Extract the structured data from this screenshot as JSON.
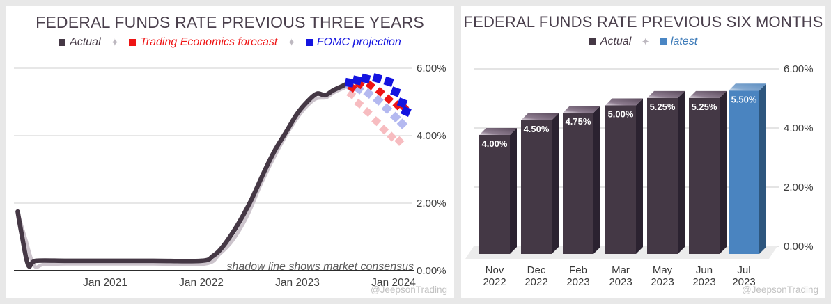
{
  "page": {
    "background": "#e8e8e8",
    "card_background": "#ffffff"
  },
  "chart_data": [
    {
      "id": "fed-funds-three-years",
      "type": "line",
      "title": "FEDERAL FUNDS RATE PREVIOUS THREE YEARS",
      "legend": [
        {
          "label": "Actual",
          "swatch": "#453845",
          "text_color": "#453845"
        },
        {
          "label": "Trading Economics forecast",
          "swatch": "#ee1414",
          "text_color": "#ee1414"
        },
        {
          "label": "FOMC projection",
          "swatch": "#1414e0",
          "text_color": "#1414e0"
        }
      ],
      "legend_separator": "✦",
      "annotation": "shadow line shows market consensus",
      "watermark": "@JeepsonTrading",
      "ylabel": "",
      "xlabel": "",
      "ylim": [
        0,
        6.4
      ],
      "grid": true,
      "y_ticks": [
        {
          "value": 6,
          "label": "6.00%"
        },
        {
          "value": 4,
          "label": "4.00%"
        },
        {
          "value": 2,
          "label": "2.00%"
        },
        {
          "value": 0,
          "label": "0.00%"
        }
      ],
      "x_ticks": [
        {
          "value": 2021.0,
          "label": "Jan 2021"
        },
        {
          "value": 2022.0,
          "label": "Jan 2022"
        },
        {
          "value": 2023.0,
          "label": "Jan 2023"
        },
        {
          "value": 2024.0,
          "label": "Jan 2024"
        }
      ],
      "series": [
        {
          "name": "market consensus shadow",
          "style": "line",
          "color": "#ccc4cc",
          "width": 5,
          "points": [
            [
              2020.09,
              1.73
            ],
            [
              2020.17,
              0.95
            ],
            [
              2020.26,
              0.15
            ],
            [
              2020.36,
              0.18
            ],
            [
              2020.6,
              0.2
            ],
            [
              2021.0,
              0.2
            ],
            [
              2021.5,
              0.2
            ],
            [
              2022.04,
              0.2
            ],
            [
              2022.19,
              0.49
            ],
            [
              2022.33,
              0.91
            ],
            [
              2022.48,
              1.63
            ],
            [
              2022.62,
              2.56
            ],
            [
              2022.75,
              3.32
            ],
            [
              2022.86,
              3.9
            ],
            [
              2022.97,
              4.41
            ],
            [
              2023.08,
              4.82
            ],
            [
              2023.19,
              5.09
            ],
            [
              2023.3,
              5.13
            ],
            [
              2023.38,
              5.28
            ],
            [
              2023.49,
              5.42
            ]
          ]
        },
        {
          "name": "Actual",
          "style": "line",
          "color": "#453845",
          "width": 6.5,
          "points": [
            [
              2020.09,
              1.75
            ],
            [
              2020.13,
              1.1
            ],
            [
              2020.2,
              0.16
            ],
            [
              2020.28,
              0.29
            ],
            [
              2020.6,
              0.29
            ],
            [
              2021.0,
              0.29
            ],
            [
              2021.5,
              0.29
            ],
            [
              2022.0,
              0.29
            ],
            [
              2022.12,
              0.43
            ],
            [
              2022.22,
              0.7
            ],
            [
              2022.37,
              1.32
            ],
            [
              2022.51,
              2.04
            ],
            [
              2022.66,
              2.97
            ],
            [
              2022.77,
              3.59
            ],
            [
              2022.88,
              4.1
            ],
            [
              2022.99,
              4.62
            ],
            [
              2023.09,
              4.97
            ],
            [
              2023.2,
              5.24
            ],
            [
              2023.29,
              5.2
            ],
            [
              2023.37,
              5.34
            ],
            [
              2023.46,
              5.46
            ],
            [
              2023.51,
              5.53
            ]
          ]
        },
        {
          "name": "Trading Economics forecast shadow",
          "style": "diamonds",
          "color": "#f7bcc0",
          "size": 10,
          "rotation": 45,
          "points": [
            [
              2023.56,
              5.22
            ],
            [
              2023.64,
              4.95
            ],
            [
              2023.73,
              4.7
            ],
            [
              2023.82,
              4.43
            ],
            [
              2023.9,
              4.18
            ],
            [
              2023.98,
              3.97
            ],
            [
              2024.06,
              3.84
            ]
          ]
        },
        {
          "name": "FOMC projection shadow",
          "style": "diamonds",
          "color": "#b4b9f0",
          "size": 11,
          "rotation": 45,
          "points": [
            [
              2023.55,
              5.45
            ],
            [
              2023.64,
              5.38
            ],
            [
              2023.74,
              5.25
            ],
            [
              2023.84,
              5.05
            ],
            [
              2023.93,
              4.8
            ],
            [
              2024.02,
              4.55
            ],
            [
              2024.09,
              4.35
            ]
          ]
        },
        {
          "name": "Trading Economics forecast",
          "style": "diamonds",
          "color": "#ee1414",
          "size": 10,
          "rotation": 45,
          "points": [
            [
              2023.57,
              5.42
            ],
            [
              2023.65,
              5.52
            ],
            [
              2023.76,
              5.49
            ],
            [
              2023.86,
              5.3
            ],
            [
              2023.95,
              5.08
            ],
            [
              2024.04,
              4.9
            ],
            [
              2024.11,
              4.84
            ]
          ]
        },
        {
          "name": "FOMC projection",
          "style": "diamonds",
          "color": "#1414e0",
          "size": 12,
          "rotation": 20,
          "points": [
            [
              2023.54,
              5.57
            ],
            [
              2023.62,
              5.64
            ],
            [
              2023.71,
              5.69
            ],
            [
              2023.83,
              5.7
            ],
            [
              2023.95,
              5.6
            ],
            [
              2024.02,
              5.3
            ],
            [
              2024.09,
              4.97
            ],
            [
              2024.13,
              4.72
            ]
          ]
        }
      ]
    },
    {
      "id": "fed-funds-six-months",
      "type": "bar",
      "title": "FEDERAL FUNDS RATE PREVIOUS SIX MONTHS",
      "legend": [
        {
          "label": "Actual",
          "swatch": "#453845",
          "text_color": "#453845"
        },
        {
          "label": "latest",
          "swatch": "#4a86c4",
          "text_color": "#3c7ab8"
        }
      ],
      "legend_separator": "✦",
      "watermark": "@JeepsonTrading",
      "ylim": [
        0,
        6.4
      ],
      "grid": true,
      "y_ticks": [
        {
          "value": 6,
          "label": "6.00%"
        },
        {
          "value": 4,
          "label": "4.00%"
        },
        {
          "value": 2,
          "label": "2.00%"
        },
        {
          "value": 0,
          "label": "0.00%"
        }
      ],
      "categories": [
        {
          "month": "Nov",
          "year": "2022"
        },
        {
          "month": "Dec",
          "year": "2022"
        },
        {
          "month": "Feb",
          "year": "2023"
        },
        {
          "month": "Mar",
          "year": "2023"
        },
        {
          "month": "May",
          "year": "2023"
        },
        {
          "month": "Jun",
          "year": "2023"
        },
        {
          "month": "Jul",
          "year": "2023"
        }
      ],
      "values": [
        4.0,
        4.5,
        4.75,
        5.0,
        5.25,
        5.25,
        5.5
      ],
      "bar_labels": [
        "4.00%",
        "4.50%",
        "4.75%",
        "5.00%",
        "5.25%",
        "5.25%",
        "5.50%"
      ],
      "variants": [
        "actual",
        "actual",
        "actual",
        "actual",
        "actual",
        "actual",
        "latest"
      ],
      "colors": {
        "actual": {
          "front": "#443845",
          "side": "#2b2230",
          "top_light": "#e3dbe4",
          "top_mid": "#8d7c8f",
          "top_dark": "#5a4a5c"
        },
        "latest": {
          "front": "#4a84c0",
          "side": "#2d567e",
          "top_light": "#dfe9f3",
          "top_mid": "#86aad1",
          "top_dark": "#5f90c2"
        },
        "floor": "#ececec",
        "gridline": "#c9c9c9",
        "label_text": "#ffffff"
      }
    }
  ]
}
